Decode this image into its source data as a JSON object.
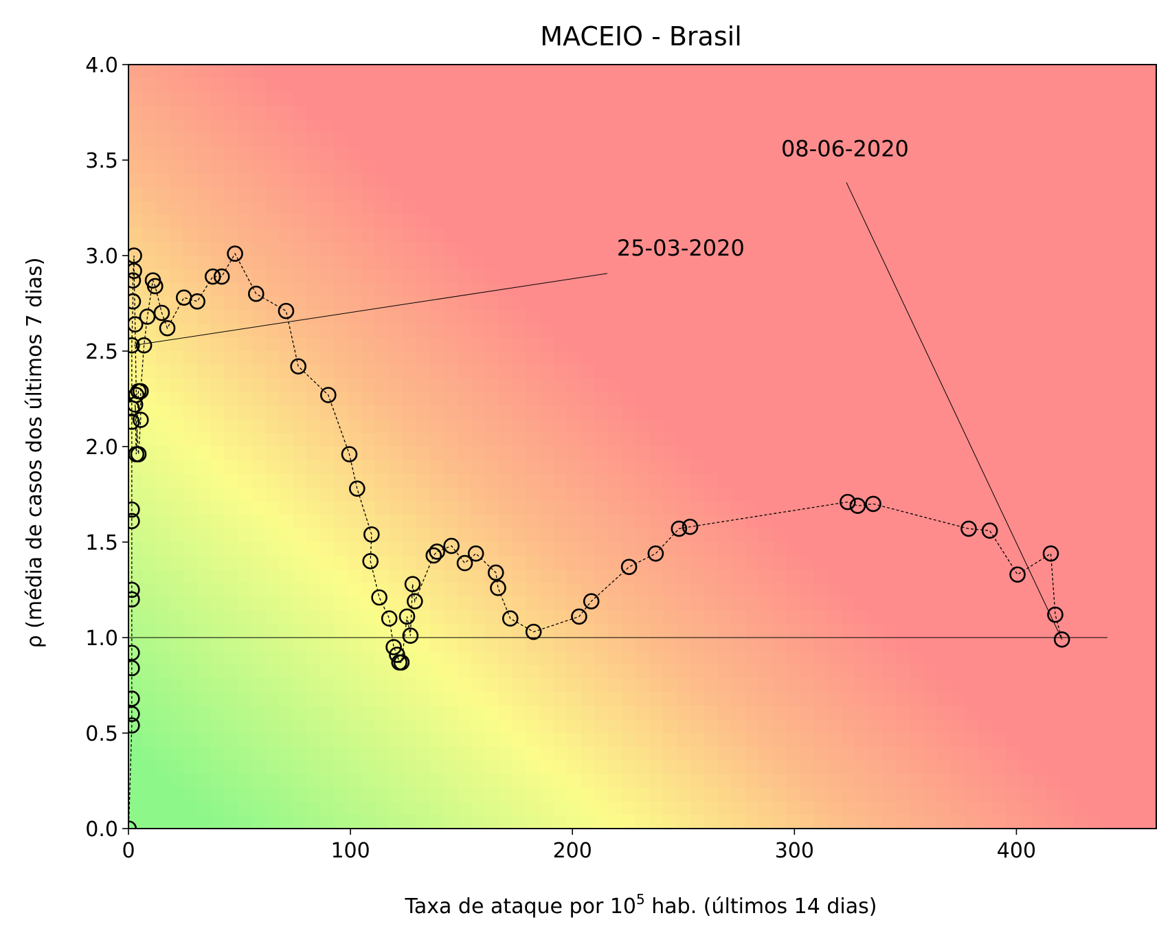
{
  "chart_data": {
    "type": "scatter",
    "title": "MACEIO - Brasil",
    "xlabel_main": "Taxa de ataque por 10",
    "xlabel_sup": "5",
    "xlabel_rest": " hab. (últimos 14 dias)",
    "ylabel": "ρ (média de casos dos últimos 7 dias)",
    "xlim": [
      0,
      463
    ],
    "ylim": [
      0,
      4.0
    ],
    "xticks": [
      0,
      100,
      200,
      300,
      400
    ],
    "xtick_labels": [
      "0",
      "100",
      "200",
      "300",
      "400"
    ],
    "yticks": [
      0,
      0.5,
      1.0,
      1.5,
      2.0,
      2.5,
      3.0,
      3.5,
      4.0
    ],
    "ytick_labels": [
      "0.0",
      "0.5",
      "1.0",
      "1.5",
      "2.0",
      "2.5",
      "3.0",
      "3.5",
      "4.0"
    ],
    "reference_line": {
      "y": 1.0,
      "x_from": 0,
      "x_to": 441
    },
    "background": "gradient green (low x, low y) to yellow to red (high x or high y)",
    "colors": {
      "green": "#8ef78a",
      "yellow": "#fcfc8a",
      "orange": "#fdbb8a",
      "red": "#fe8c8c"
    },
    "series": [
      {
        "marker": "open circle",
        "line": "dashed",
        "x": [
          0.1,
          1.5,
          1.5,
          1.5,
          1.5,
          1.5,
          1.5,
          1.5,
          1.5,
          1.5,
          1.5,
          1.5,
          1.5,
          2.0,
          2.0,
          2.5,
          2.5,
          3.0,
          3.5,
          4.5,
          3.5,
          3.0,
          4.5,
          5.5,
          5.5,
          7.0,
          8.5,
          11.0,
          12.0,
          15.0,
          17.5,
          25.0,
          31.0,
          38.0,
          42.0,
          48.0,
          57.5,
          71.0,
          76.5,
          90.0,
          99.5,
          103.0,
          109.5,
          109.0,
          113.0,
          117.5,
          119.5,
          121.0,
          122.0,
          123.0,
          125.5,
          127.0,
          128.0,
          129.0,
          137.5,
          139.0,
          145.5,
          151.5,
          156.5,
          165.5,
          166.5,
          172.0,
          182.5,
          203.0,
          208.5,
          225.5,
          237.5,
          248.0,
          253.0,
          324.0,
          328.5,
          335.5,
          378.5,
          388.0,
          400.5,
          415.5,
          417.5,
          420.5
        ],
        "y": [
          0.0,
          0.54,
          0.6,
          0.68,
          0.84,
          0.92,
          1.2,
          1.25,
          1.61,
          1.67,
          2.13,
          2.2,
          2.53,
          2.76,
          2.87,
          3.0,
          2.92,
          2.64,
          2.27,
          2.29,
          1.96,
          2.22,
          1.96,
          2.14,
          2.29,
          2.53,
          2.68,
          2.87,
          2.84,
          2.7,
          2.62,
          2.78,
          2.76,
          2.89,
          2.89,
          3.01,
          2.8,
          2.71,
          2.42,
          2.27,
          1.96,
          1.78,
          1.54,
          1.4,
          1.21,
          1.1,
          0.95,
          0.91,
          0.87,
          0.87,
          1.11,
          1.01,
          1.28,
          1.19,
          1.43,
          1.45,
          1.48,
          1.39,
          1.44,
          1.34,
          1.26,
          1.1,
          1.03,
          1.11,
          1.19,
          1.37,
          1.44,
          1.57,
          1.58,
          1.71,
          1.69,
          1.7,
          1.57,
          1.56,
          1.33,
          1.44,
          1.12,
          0.99
        ]
      }
    ],
    "annotations": [
      {
        "text": "25-03-2020",
        "xy": [
          2.5,
          2.53
        ],
        "xytext": [
          220,
          3.0
        ]
      },
      {
        "text": "08-06-2020",
        "xy": [
          420.5,
          0.99
        ],
        "xytext": [
          294,
          3.52
        ]
      }
    ]
  }
}
